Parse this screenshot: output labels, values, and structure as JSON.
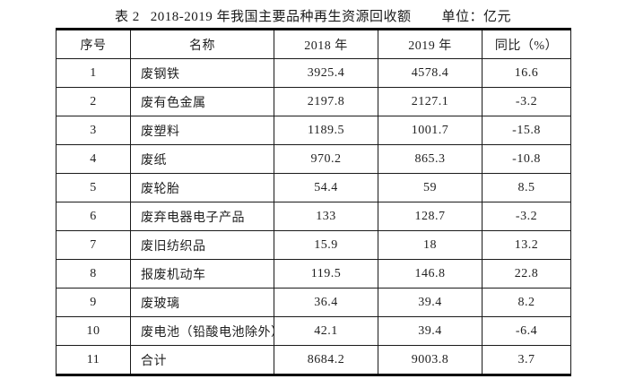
{
  "colors": {
    "background": "#ffffff",
    "text": "#1a1a1a",
    "border": "#000000"
  },
  "title": {
    "label": "表 2",
    "text": "2018-2019 年我国主要品种再生资源回收额",
    "unit": "单位：亿元"
  },
  "table": {
    "headers": [
      "序号",
      "名称",
      "2018 年",
      "2019 年",
      "同比（%）"
    ],
    "rows": [
      [
        "1",
        "废钢铁",
        "3925.4",
        "4578.4",
        "16.6"
      ],
      [
        "2",
        "废有色金属",
        "2197.8",
        "2127.1",
        "-3.2"
      ],
      [
        "3",
        "废塑料",
        "1189.5",
        "1001.7",
        "-15.8"
      ],
      [
        "4",
        "废纸",
        "970.2",
        "865.3",
        "-10.8"
      ],
      [
        "5",
        "废轮胎",
        "54.4",
        "59",
        "8.5"
      ],
      [
        "6",
        "废弃电器电子产品",
        "133",
        "128.7",
        "-3.2"
      ],
      [
        "7",
        "废旧纺织品",
        "15.9",
        "18",
        "13.2"
      ],
      [
        "8",
        "报废机动车",
        "119.5",
        "146.8",
        "22.8"
      ],
      [
        "9",
        "废玻璃",
        "36.4",
        "39.4",
        "8.2"
      ],
      [
        "10",
        "废电池（铅酸电池除外）",
        "42.1",
        "39.4",
        "-6.4"
      ],
      [
        "11",
        "合计",
        "8684.2",
        "9003.8",
        "3.7"
      ]
    ]
  }
}
